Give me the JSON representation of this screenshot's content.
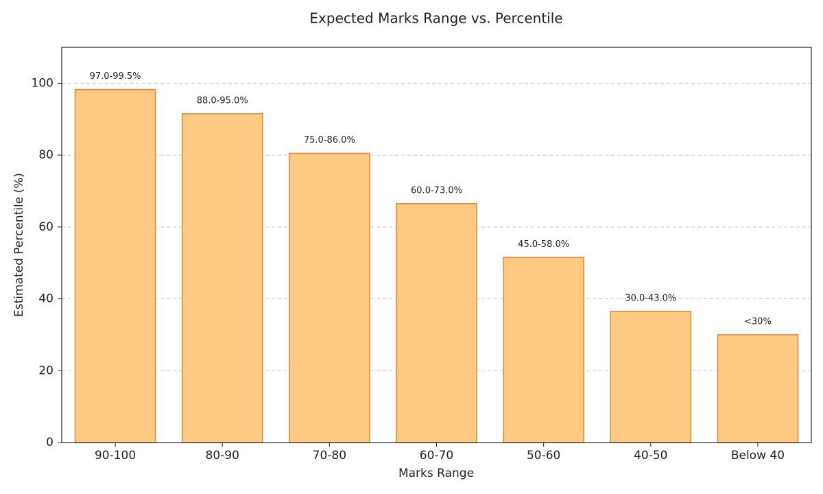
{
  "chart_data": {
    "type": "bar",
    "title": "Expected Marks Range vs. Percentile",
    "x_label": "Marks Range",
    "y_label": "Estimated Percentile (%)",
    "categories": [
      "90-100",
      "80-90",
      "70-80",
      "60-70",
      "50-60",
      "40-50",
      "Below 40"
    ],
    "values": [
      98.25,
      91.5,
      80.5,
      66.5,
      51.5,
      36.5,
      30
    ],
    "annotations": [
      "97.0-99.5%",
      "88.0-95.0%",
      "75.0-86.0%",
      "60.0-73.0%",
      "45.0-58.0%",
      "30.0-43.0%",
      "<30%"
    ],
    "color": "#fdc983",
    "edge_color": "#e8862a",
    "ylim": [
      0,
      110
    ],
    "yticks": [
      0,
      20,
      40,
      60,
      80,
      100
    ],
    "grid": true
  }
}
